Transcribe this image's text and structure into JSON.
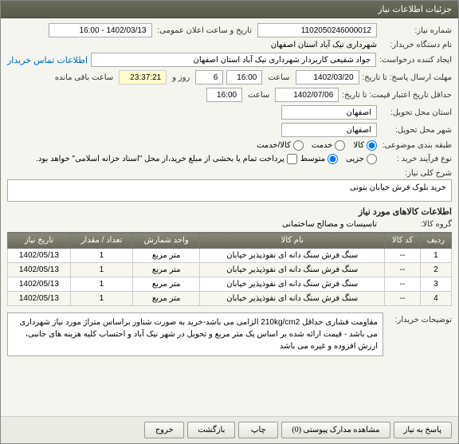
{
  "window_title": "جزئیات اطلاعات نیاز",
  "fields": {
    "need_number_label": "شماره نیاز:",
    "need_number": "1102050246000012",
    "announce_label": "تاریخ و ساعت اعلان عمومی:",
    "announce_value": "1402/03/13 - 16:00",
    "buyer_org_label": "نام دستگاه خریدار:",
    "buyer_org": "شهرداری نیک آباد استان اصفهان",
    "requester_label": "ایجاد کننده درخواست:",
    "requester": "جواد شفیعی کاربردار شهرداری نیک آباد استان اصفهان",
    "contact_link": "اطلاعات تماس خریدار",
    "send_deadline_label": "مهلت ارسال پاسخ: تا تاریخ:",
    "send_date": "1402/03/20",
    "time_label": "ساعت",
    "send_time": "16:00",
    "remaining_count": "6",
    "remaining_label_1": "روز و",
    "remaining_time": "23:37:21",
    "remaining_label_2": "ساعت باقی مانده",
    "validity_label": "حداقل تاریخ اعتبار قیمت: تا تاریخ:",
    "validity_date": "1402/07/06",
    "validity_time": "16:00",
    "delivery_city_label": "استان محل تحویل:",
    "delivery_city": "اصفهان",
    "delivery_city2_label": "شهر محل تحویل:",
    "delivery_city2": "اصفهان",
    "category_label": "طبقه بندی موضوعی:",
    "purchase_type_label": "نوع فرآیند خرید :",
    "partial_payment": "پرداخت تمام یا بخشی از مبلغ خرید،از محل \"اسناد خزانه اسلامی\" خواهد بود."
  },
  "radios": {
    "category": [
      {
        "label": "کالا",
        "checked": true
      },
      {
        "label": "خدمت",
        "checked": false
      },
      {
        "label": "کالا/خدمت",
        "checked": false
      }
    ],
    "purchase_type": [
      {
        "label": "جزیی",
        "checked": false
      },
      {
        "label": "متوسط",
        "checked": true
      }
    ]
  },
  "need_desc_label": "شرح کلی نیاز:",
  "need_desc": "خرید بلوک فرش خیابان بتونی",
  "goods_section": "اطلاعات کالاهای مورد نیاز",
  "goods_group_label": "گروه کالا:",
  "goods_group": "تاسیسات و مصالح ساختمانی",
  "table": {
    "columns": [
      "ردیف",
      "کد کالا",
      "نام کالا",
      "واحد شمارش",
      "تعداد / مقدار",
      "تاریخ نیاز"
    ],
    "rows": [
      [
        "1",
        "--",
        "سنگ فرش سنگ دانه ای نفوذپذیر خیابان",
        "متر مربع",
        "1",
        "1402/05/13"
      ],
      [
        "2",
        "--",
        "سنگ فرش سنگ دانه ای نفوذپذیر خیابان",
        "متر مربع",
        "1",
        "1402/05/13"
      ],
      [
        "3",
        "--",
        "سنگ فرش سنگ دانه ای نفوذپذیر خیابان",
        "متر مربع",
        "1",
        "1402/05/13"
      ],
      [
        "4",
        "--",
        "سنگ فرش سنگ دانه ای نفوذپذیر خیابان",
        "متر مربع",
        "1",
        "1402/05/13"
      ]
    ]
  },
  "buyer_notes_label": "توضیحات خریدار:",
  "buyer_notes": "مقاومت فشاری حداقل 210kg/cm2 الزامی می باشد-خرید به صورت شناور  براساس متراژ مورد نیاز شهرداری می باشد - قیمت ارائه شده بر اساس یک متر مربع و تحویل در شهر نیک آباد و احتساب کلیه هزینه های جانبی، ارزش افزوده و غیره می باشد",
  "buttons": {
    "respond": "پاسخ به نیاز",
    "attachments": "مشاهده مدارک پیوستی (0)",
    "print": "چاپ",
    "back": "بازگشت",
    "exit": "خروج"
  }
}
